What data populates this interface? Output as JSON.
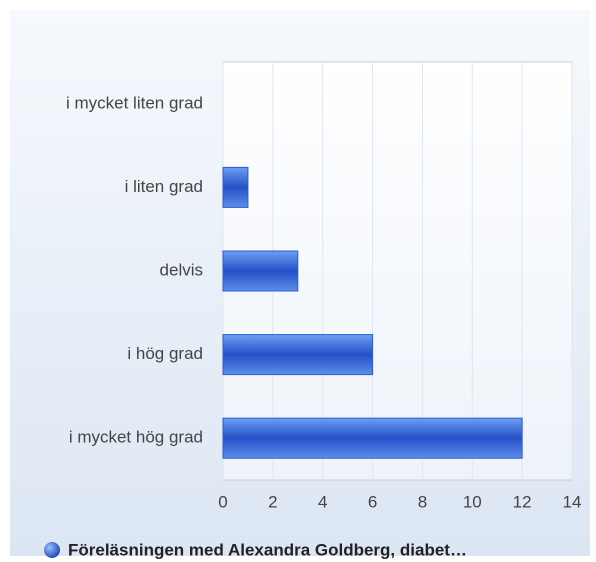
{
  "chart_data": {
    "type": "bar",
    "orientation": "horizontal",
    "categories": [
      "i mycket liten grad",
      "i liten grad",
      "delvis",
      "i hög grad",
      "i mycket hög grad"
    ],
    "series": [
      {
        "name": "Föreläsningen med Alexandra Goldberg, diabet…",
        "color": "#2a5bd7",
        "values": [
          0,
          1,
          3,
          6,
          12
        ]
      }
    ],
    "xlim": [
      0,
      14
    ],
    "xticks": [
      0,
      2,
      4,
      6,
      8,
      10,
      12,
      14
    ],
    "grid": true
  }
}
